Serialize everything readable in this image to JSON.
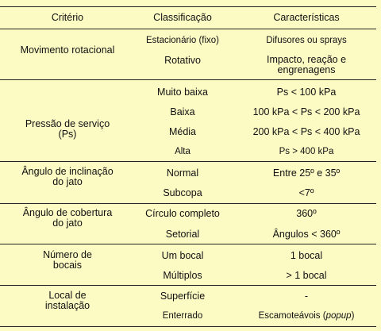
{
  "header": {
    "criterio": "Critério",
    "classificacao": "Classificação",
    "caracteristicas": "Características"
  },
  "groups": [
    {
      "criterio": "Movimento rotacional",
      "rows": [
        {
          "classificacao": "Estacionário (fixo)",
          "caracteristica": "Difusores ou sprays"
        },
        {
          "classificacao": "Rotativo",
          "caracteristica_line1": "Impacto, reação e",
          "caracteristica_line2": "engrenagens"
        }
      ]
    },
    {
      "criterio_line1": "Pressão de serviço",
      "criterio_line2": "(Ps)",
      "rows": [
        {
          "classificacao": "Muito baixa",
          "caracteristica": "Ps < 100 kPa"
        },
        {
          "classificacao": "Baixa",
          "caracteristica": "100 kPa < Ps < 200 kPa"
        },
        {
          "classificacao": "Média",
          "caracteristica": "200 kPa < Ps < 400 kPa"
        },
        {
          "classificacao": "Alta",
          "caracteristica": "Ps > 400 kPa"
        }
      ]
    },
    {
      "criterio_line1": "Ângulo de inclinação",
      "criterio_line2": "do jato",
      "rows": [
        {
          "classificacao": "Normal",
          "caracteristica": "Entre 25º e 35º"
        },
        {
          "classificacao": "Subcopa",
          "caracteristica": "<7º"
        }
      ]
    },
    {
      "criterio_line1": "Ângulo de cobertura",
      "criterio_line2": "do jato",
      "rows": [
        {
          "classificacao": "Círculo completo",
          "caracteristica": "360º"
        },
        {
          "classificacao": "Setorial",
          "caracteristica": "Ângulos < 360º"
        }
      ]
    },
    {
      "criterio_line1": "Número de",
      "criterio_line2": "bocais",
      "rows": [
        {
          "classificacao": "Um bocal",
          "caracteristica": "1 bocal"
        },
        {
          "classificacao": "Múltiplos",
          "caracteristica": "> 1 bocal"
        }
      ]
    },
    {
      "criterio_line1": "Local de",
      "criterio_line2": "instalação",
      "rows": [
        {
          "classificacao": "Superfície",
          "caracteristica": "-"
        },
        {
          "classificacao": "Enterrado",
          "caracteristica_main": "Escamoteávois (",
          "caracteristica_italic": "popup",
          "caracteristica_end": ")"
        }
      ]
    }
  ]
}
